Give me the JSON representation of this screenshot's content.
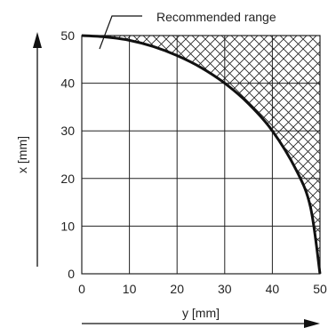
{
  "chart_data": {
    "type": "line",
    "title": "",
    "xlabel": "y [mm]",
    "ylabel": "x [mm]",
    "xlim": [
      0,
      50
    ],
    "ylim": [
      0,
      50
    ],
    "xticks": [
      "0",
      "10",
      "20",
      "30",
      "40",
      "50"
    ],
    "yticks": [
      "0",
      "10",
      "20",
      "30",
      "40",
      "50"
    ],
    "grid": true,
    "series": [
      {
        "x": [
          0,
          5,
          10,
          15,
          20,
          25,
          30,
          35,
          40,
          45,
          48,
          50
        ],
        "y": [
          50,
          49.7,
          49,
          47.7,
          45.8,
          43.3,
          40,
          35.7,
          30,
          21.8,
          14,
          0
        ]
      }
    ],
    "shaded_region": "above curve (hatched)",
    "annotation": "Recommended range"
  }
}
